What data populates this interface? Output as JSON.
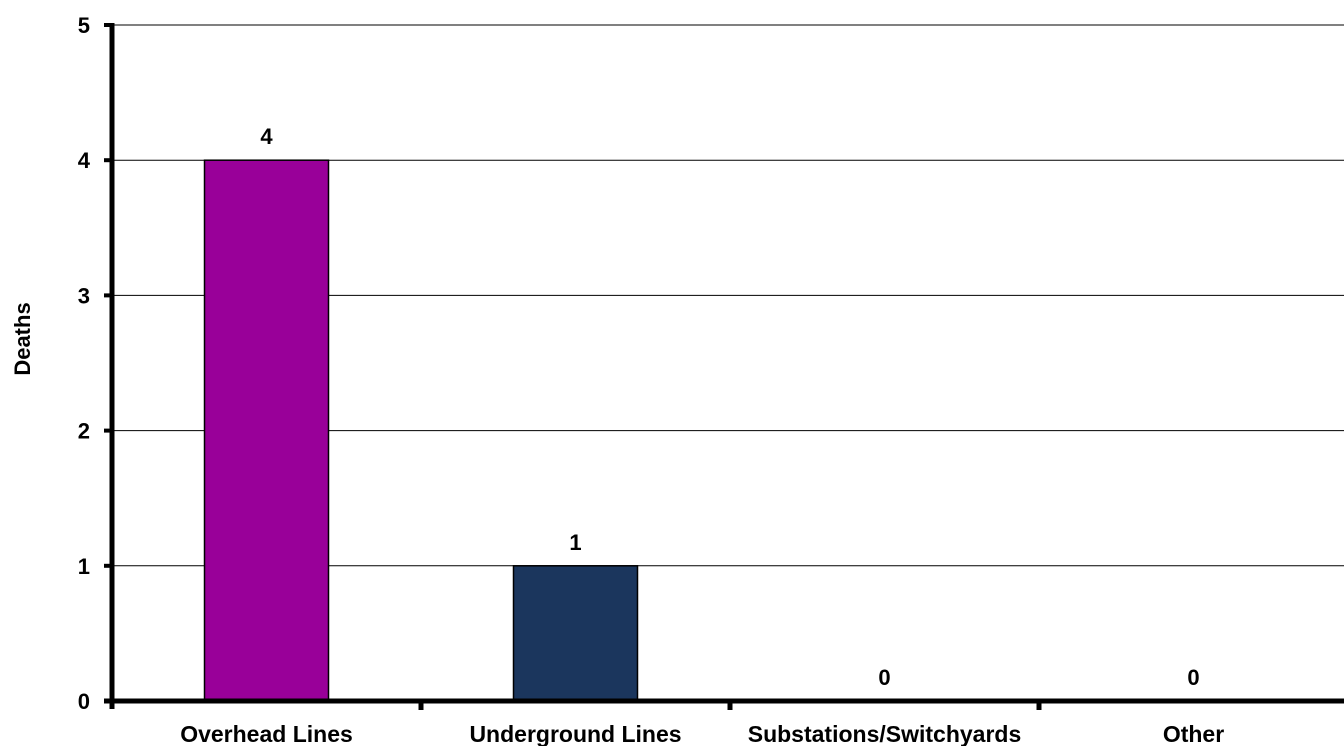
{
  "chart_data": {
    "type": "bar",
    "title": "",
    "xlabel": "",
    "ylabel": "Deaths",
    "categories": [
      "Overhead Lines",
      "Underground Lines",
      "Substations/Switchyards",
      "Other"
    ],
    "values": [
      4,
      1,
      0,
      0
    ],
    "data_labels": [
      "4",
      "1",
      "0",
      "0"
    ],
    "bar_colors": [
      "#990099",
      "#1b365d",
      "#1b365d",
      "#1b365d"
    ],
    "yticks": [
      "0",
      "1",
      "2",
      "3",
      "4",
      "5"
    ],
    "ylim": [
      0,
      5
    ],
    "grid": true,
    "legend": "none"
  }
}
